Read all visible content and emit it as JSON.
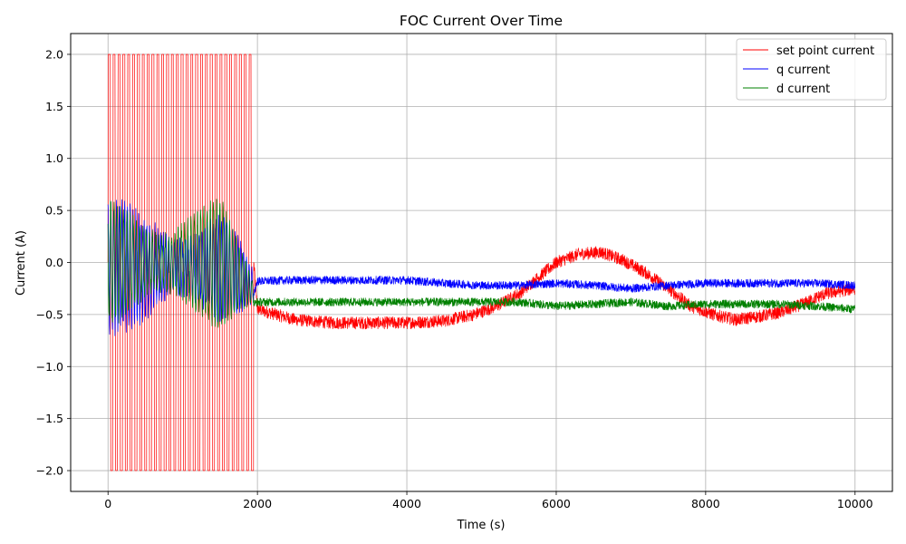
{
  "chart_data": {
    "type": "line",
    "title": "FOC Current Over Time",
    "xlabel": "Time (s)",
    "ylabel": "Current (A)",
    "xlim": [
      -500,
      10500
    ],
    "ylim": [
      -2.2,
      2.2
    ],
    "xticks": [
      0,
      2000,
      4000,
      6000,
      8000,
      10000
    ],
    "yticks": [
      -2.0,
      -1.5,
      -1.0,
      -0.5,
      0.0,
      0.5,
      1.0,
      1.5,
      2.0
    ],
    "xtick_labels": [
      "0",
      "2000",
      "4000",
      "6000",
      "8000",
      "10000"
    ],
    "ytick_labels": [
      "−2.0",
      "−1.5",
      "−1.0",
      "−0.5",
      "0.0",
      "0.5",
      "1.0",
      "1.5",
      "2.0"
    ],
    "grid": true,
    "legend_position": "top-right",
    "series": [
      {
        "name": "set point current",
        "color": "#ff0000",
        "points_x": [
          0,
          1000,
          1950,
          2000,
          2500,
          3000,
          3500,
          4000,
          4500,
          4900,
          5200,
          5500,
          5800,
          6000,
          6300,
          6600,
          6900,
          7200,
          7500,
          7800,
          8100,
          8400,
          8700,
          9000,
          9300,
          9600,
          10000
        ],
        "points_y": [
          0.0,
          0.0,
          0.0,
          -0.45,
          -0.55,
          -0.58,
          -0.58,
          -0.58,
          -0.56,
          -0.5,
          -0.42,
          -0.3,
          -0.12,
          0.0,
          0.08,
          0.1,
          0.02,
          -0.1,
          -0.25,
          -0.42,
          -0.5,
          -0.55,
          -0.52,
          -0.48,
          -0.4,
          -0.3,
          -0.25
        ],
        "noise_amplitude": 0.06,
        "oscillation": {
          "x_range": [
            0,
            1950
          ],
          "amplitude": 2.0,
          "note": "square-wave switching between -2.0 and 2.0"
        }
      },
      {
        "name": "q current",
        "color": "#0000ff",
        "points_x": [
          0,
          1000,
          1950,
          2000,
          2500,
          3000,
          3500,
          4000,
          4500,
          5000,
          5500,
          6000,
          6500,
          7000,
          7500,
          8000,
          8500,
          9000,
          9500,
          10000
        ],
        "points_y": [
          0.0,
          0.0,
          -0.3,
          -0.18,
          -0.17,
          -0.17,
          -0.17,
          -0.17,
          -0.2,
          -0.22,
          -0.22,
          -0.2,
          -0.22,
          -0.25,
          -0.22,
          -0.2,
          -0.2,
          -0.2,
          -0.2,
          -0.22
        ],
        "noise_amplitude": 0.04,
        "oscillation": {
          "x_range": [
            0,
            1950
          ],
          "amplitude": 0.75,
          "center": -0.05
        }
      },
      {
        "name": "d current",
        "color": "#008000",
        "points_x": [
          0,
          1000,
          1950,
          2000,
          2500,
          3000,
          3500,
          4000,
          4500,
          5000,
          5500,
          6000,
          6500,
          7000,
          7500,
          8000,
          8500,
          9000,
          9500,
          10000
        ],
        "points_y": [
          0.0,
          0.0,
          -0.4,
          -0.38,
          -0.38,
          -0.38,
          -0.38,
          -0.38,
          -0.38,
          -0.38,
          -0.38,
          -0.42,
          -0.4,
          -0.38,
          -0.42,
          -0.4,
          -0.4,
          -0.4,
          -0.42,
          -0.45
        ],
        "noise_amplitude": 0.04,
        "oscillation": {
          "x_range": [
            0,
            1950
          ],
          "amplitude": 0.75,
          "center": 0.0
        }
      }
    ]
  }
}
